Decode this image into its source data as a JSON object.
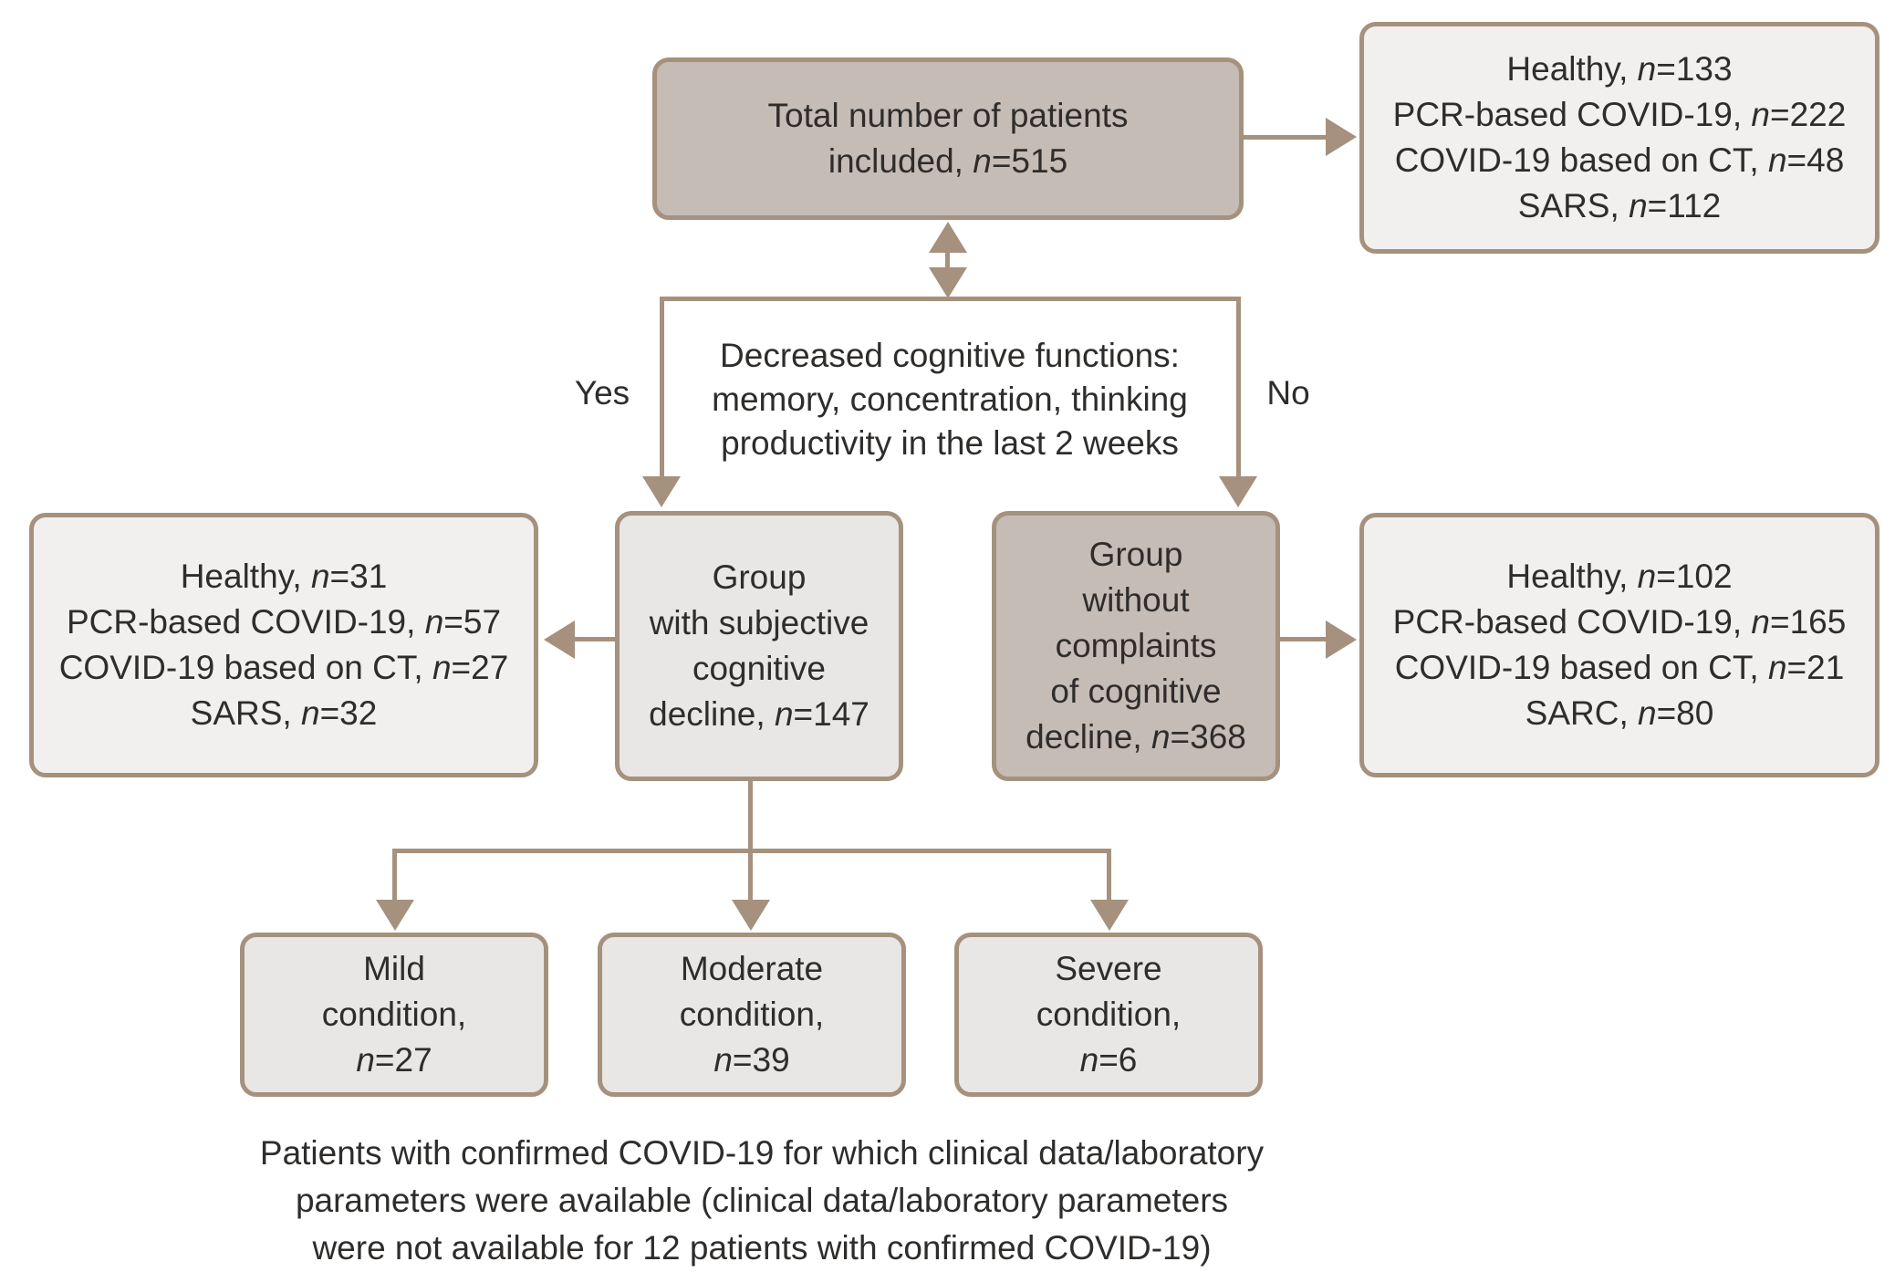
{
  "palette": {
    "box_tan": "#c5bcb6",
    "box_light": "#f2f0ee",
    "box_gray": "#e8e7e5",
    "stroke": "#a5917d",
    "text": "#2f2d2b"
  },
  "nodes": {
    "total": {
      "lines": [
        "Total number of patients",
        "included, n=515"
      ]
    },
    "total_breakdown": {
      "lines": [
        "Healthy, n=133",
        "PCR-based COVID-19, n=222",
        "COVID-19 based on CT, n=48",
        "SARS, n=112"
      ]
    },
    "decision": {
      "lines": [
        "Decreased cognitive functions:",
        "memory, concentration, thinking",
        "productivity in the last 2 weeks"
      ],
      "yes_label": "Yes",
      "no_label": "No"
    },
    "scd_group": {
      "lines": [
        "Group",
        "with subjective",
        "cognitive",
        "decline, n=147"
      ]
    },
    "scd_breakdown": {
      "lines": [
        "Healthy, n=31",
        "PCR-based COVID-19, n=57",
        "COVID-19 based on CT, n=27",
        "SARS, n=32"
      ]
    },
    "nc_group": {
      "lines": [
        "Group",
        "without",
        "complaints",
        "of cognitive",
        "decline, n=368"
      ]
    },
    "nc_breakdown": {
      "lines": [
        "Healthy, n=102",
        "PCR-based COVID-19, n=165",
        "COVID-19 based on CT, n=21",
        "SARC, n=80"
      ]
    },
    "mild": {
      "lines": [
        "Mild",
        "condition,",
        "n=27"
      ]
    },
    "moderate": {
      "lines": [
        "Moderate",
        "condition,",
        "n=39"
      ]
    },
    "severe": {
      "lines": [
        "Severe",
        "condition,",
        "n=6"
      ]
    }
  },
  "caption": {
    "lines": [
      "Patients with confirmed COVID-19 for which clinical data/laboratory",
      "parameters were available (clinical data/laboratory parameters",
      "were not available for 12 patients with confirmed COVID-19)"
    ]
  }
}
